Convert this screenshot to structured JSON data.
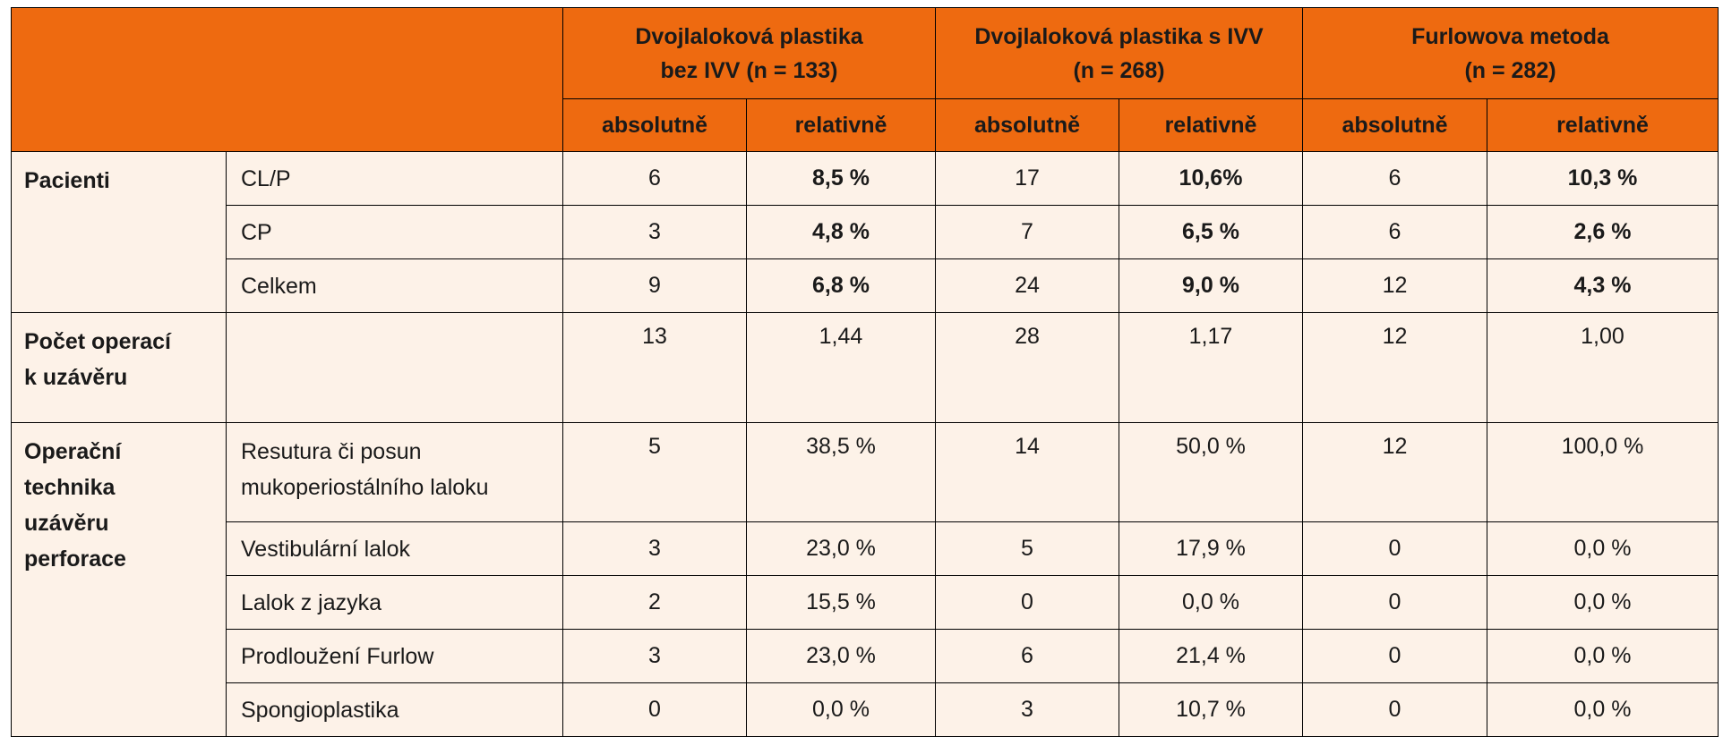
{
  "columns": {
    "groups": [
      {
        "line1": "Dvojlaloková plastika",
        "line2": "bez IVV (n = 133)"
      },
      {
        "line1": "Dvojlaloková plastika s IVV",
        "line2": "(n = 268)"
      },
      {
        "line1": "Furlowova metoda",
        "line2": "(n = 282)"
      }
    ],
    "abs": "absolutně",
    "rel": "relativně"
  },
  "sections": {
    "pacienti": {
      "label": "Pacienti",
      "rows": [
        {
          "name": "CL/P",
          "v": [
            "6",
            "8,5 %",
            "17",
            "10,6%",
            "6",
            "10,3 %"
          ]
        },
        {
          "name": "CP",
          "v": [
            "3",
            "4,8 %",
            "7",
            "6,5 %",
            "6",
            "2,6 %"
          ]
        },
        {
          "name": "Celkem",
          "v": [
            "9",
            "6,8 %",
            "24",
            "9,0 %",
            "12",
            "4,3 %"
          ]
        }
      ]
    },
    "pocet": {
      "label_line1": "Počet operací",
      "label_line2": "k uzávěru",
      "v": [
        "13",
        "1,44",
        "28",
        "1,17",
        "12",
        "1,00"
      ]
    },
    "technika": {
      "label_line1": "Operační",
      "label_line2": "technika",
      "label_line3": "uzávěru",
      "label_line4": "perforace",
      "rows": [
        {
          "name1": "Resutura či posun",
          "name2": "mukoperiostálního laloku",
          "v": [
            "5",
            "38,5 %",
            "14",
            "50,0 %",
            "12",
            "100,0 %"
          ]
        },
        {
          "name": "Vestibulární lalok",
          "v": [
            "3",
            "23,0 %",
            "5",
            "17,9 %",
            "0",
            "0,0 %"
          ]
        },
        {
          "name": "Lalok z jazyka",
          "v": [
            "2",
            "15,5 %",
            "0",
            "0,0 %",
            "0",
            "0,0 %"
          ]
        },
        {
          "name": "Prodloužení Furlow",
          "v": [
            "3",
            "23,0 %",
            "6",
            "21,4 %",
            "0",
            "0,0 %"
          ]
        },
        {
          "name": "Spongioplastika",
          "v": [
            "0",
            "0,0 %",
            "3",
            "10,7 %",
            "0",
            "0,0 %"
          ]
        }
      ]
    }
  }
}
